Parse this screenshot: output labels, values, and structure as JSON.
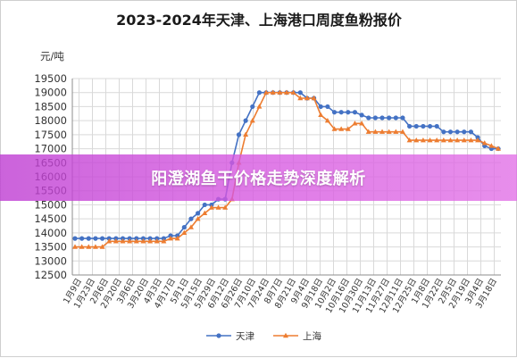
{
  "chart_data": {
    "type": "line",
    "title": "2023-2024年天津、上海港口周度鱼粉报价",
    "ylabel": "元/吨",
    "xlabel": "",
    "ylim": [
      12500,
      19500
    ],
    "yticks": [
      12500,
      13000,
      13500,
      14000,
      14500,
      15000,
      15500,
      16000,
      16500,
      17000,
      17500,
      18000,
      18500,
      19000,
      19500
    ],
    "grid": true,
    "legend_position": "bottom",
    "x_labels": [
      "1月9日",
      "1月23日",
      "2月6日",
      "2月20日",
      "3月6日",
      "3月20日",
      "4月3日",
      "4月17日",
      "5月1日",
      "5月15日",
      "5月29日",
      "6月12日",
      "6月26日",
      "7月10日",
      "7月24日",
      "8月7日",
      "8月21日",
      "9月4日",
      "9月18日",
      "10月2日",
      "10月16日",
      "10月30日",
      "11月13日",
      "11月27日",
      "12月11日",
      "12月25日",
      "1月8日",
      "1月22日",
      "2月5日",
      "2月19日",
      "3月4日",
      "3月18日"
    ],
    "series": [
      {
        "name": "天津",
        "color": "#4472C4",
        "marker": "circle",
        "values": [
          13800,
          13800,
          13800,
          13800,
          13800,
          13800,
          13800,
          13800,
          13800,
          13800,
          13800,
          13800,
          13800,
          13800,
          13900,
          13900,
          14200,
          14500,
          14700,
          15000,
          15000,
          15200,
          15200,
          16500,
          17500,
          18000,
          18500,
          19000,
          19000,
          19000,
          19000,
          19000,
          19000,
          19000,
          18800,
          18800,
          18500,
          18500,
          18300,
          18300,
          18300,
          18300,
          18200,
          18100,
          18100,
          18100,
          18100,
          18100,
          18100,
          17800,
          17800,
          17800,
          17800,
          17800,
          17600,
          17600,
          17600,
          17600,
          17600,
          17400,
          17100,
          17000,
          17000
        ]
      },
      {
        "name": "上海",
        "color": "#ED7D31",
        "marker": "triangle",
        "values": [
          13500,
          13500,
          13500,
          13500,
          13500,
          13700,
          13700,
          13700,
          13700,
          13700,
          13700,
          13700,
          13700,
          13700,
          13800,
          13800,
          14000,
          14200,
          14500,
          14700,
          14900,
          14900,
          14900,
          15200,
          16500,
          17500,
          18000,
          18500,
          19000,
          19000,
          19000,
          19000,
          19000,
          18800,
          18800,
          18800,
          18200,
          18000,
          17700,
          17700,
          17700,
          17900,
          17900,
          17600,
          17600,
          17600,
          17600,
          17600,
          17600,
          17300,
          17300,
          17300,
          17300,
          17300,
          17300,
          17300,
          17300,
          17300,
          17300,
          17300,
          17200,
          17100,
          17000
        ]
      }
    ]
  },
  "overlay": {
    "title": "阳澄湖鱼干价格走势深度解析"
  }
}
